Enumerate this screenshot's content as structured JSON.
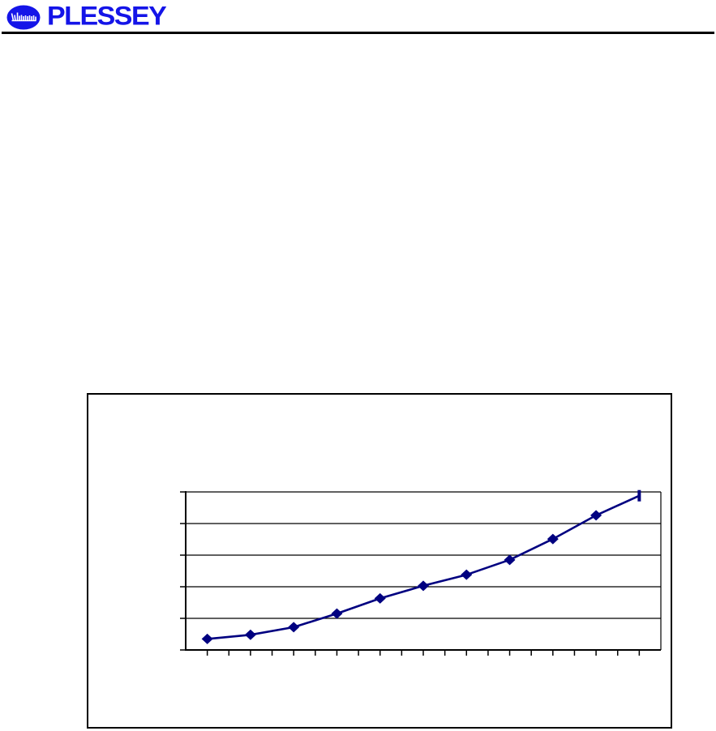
{
  "header": {
    "logo_text": "PLESSEY",
    "logo_color": "#1414e8",
    "logo_icon_name": "plessey-waveform-circle-icon"
  },
  "figure_frame": {
    "border_color": "#000000"
  },
  "chart_data": {
    "type": "line",
    "title": "",
    "xlabel": "",
    "ylabel": "",
    "x": [
      1,
      2,
      3,
      4,
      5,
      6,
      7,
      8,
      9,
      10,
      11
    ],
    "values": [
      0.35,
      0.48,
      0.72,
      1.15,
      1.63,
      2.03,
      2.38,
      2.85,
      3.51,
      4.26,
      4.88
    ],
    "ylim": [
      0,
      5
    ],
    "y_gridline_count": 6,
    "x_tick_count": 21,
    "tick_labels_visible": false,
    "grid": true,
    "legend": false,
    "line_color": "#000080",
    "marker": "diamond",
    "last_marker": "vertical-dash",
    "grid_color": "#000000",
    "axis_color": "#000000"
  }
}
